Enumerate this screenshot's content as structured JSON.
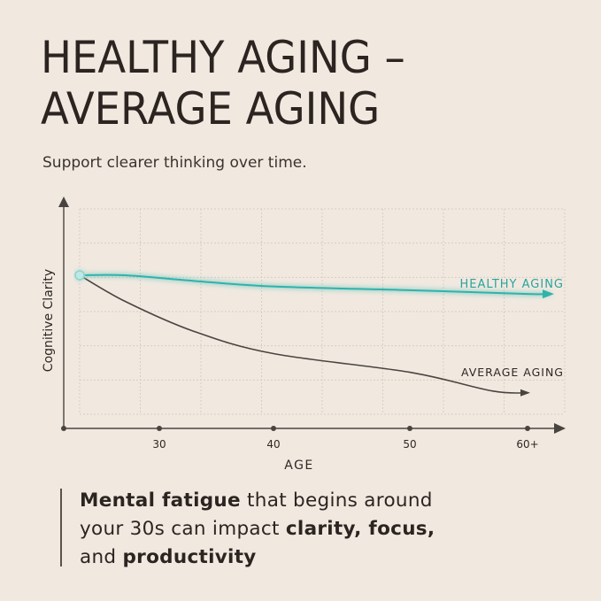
{
  "title_lines": [
    "HEALTHY AGING –",
    "AVERAGE AGING"
  ],
  "subtitle": "Support clearer thinking over time.",
  "note": {
    "line1_bold": "Mental fatigue",
    "line1_rest": " that begins around",
    "line2_pre": "your 30s can impact ",
    "line2_bold": "clarity, focus,",
    "line3_pre": "and ",
    "line3_bold": "productivity"
  },
  "colors": {
    "background": "#f1e9e0",
    "healthy": "#2fb3ab",
    "average": "#4a4440",
    "grid": "#d9cdbf"
  },
  "chart_data": {
    "type": "line",
    "xlabel": "AGE",
    "ylabel": "Cognitive Clarity",
    "x_ticks": [
      "30",
      "40",
      "50",
      "60+"
    ],
    "grid": true,
    "series": [
      {
        "name": "HEALTHY AGING",
        "x": [
          23,
          27,
          33,
          40,
          50,
          60,
          62
        ],
        "y": [
          100,
          100,
          97,
          94,
          92,
          90,
          90
        ]
      },
      {
        "name": "AVERAGE AGING",
        "x": [
          23,
          27,
          33,
          40,
          50,
          57,
          60
        ],
        "y": [
          100,
          86,
          70,
          58,
          48,
          38,
          37
        ]
      }
    ]
  }
}
